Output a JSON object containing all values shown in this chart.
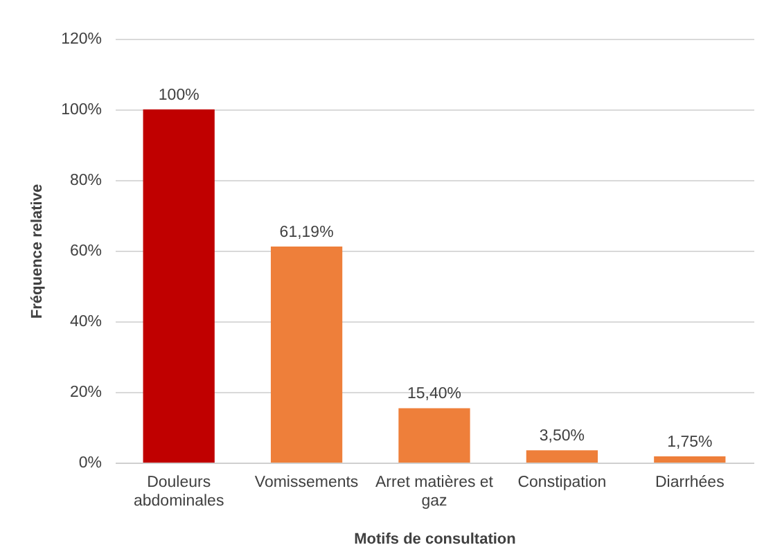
{
  "chart_data": {
    "type": "bar",
    "xlabel": "Motifs de consultation",
    "ylabel": "Fréquence relative",
    "categories": [
      "Douleurs abdominales",
      "Vomissements",
      "Arret matières et gaz",
      "Constipation",
      "Diarrhées"
    ],
    "values": [
      100,
      61.19,
      15.4,
      3.5,
      1.75
    ],
    "colors": [
      "#c00000",
      "#ee7f3a",
      "#ee7f3a",
      "#ee7f3a",
      "#ee7f3a"
    ],
    "value_labels": [
      "100%",
      "61,19%",
      "15,40%",
      "3,50%",
      "1,75%"
    ],
    "ylim": [
      0,
      120
    ],
    "yticks": [
      {
        "value": 0,
        "label": "0%"
      },
      {
        "value": 20,
        "label": "20%"
      },
      {
        "value": 40,
        "label": "40%"
      },
      {
        "value": 60,
        "label": "60%"
      },
      {
        "value": 80,
        "label": "80%"
      },
      {
        "value": 100,
        "label": "100%"
      },
      {
        "value": 120,
        "label": "120%"
      }
    ],
    "grid": "y"
  }
}
